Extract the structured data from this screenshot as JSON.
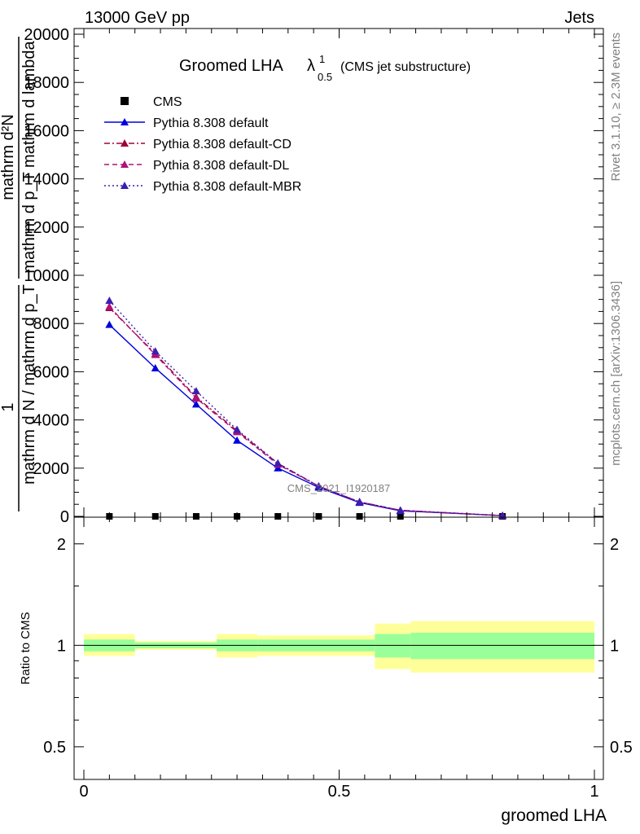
{
  "header": {
    "energy": "13000 GeV pp",
    "process": "Jets",
    "rivet": "Rivet 3.1.10, ≥ 2.3M events",
    "mcplots": "mcplots.cern.ch [arXiv:1306.3436]",
    "watermark": "CMS_2021_I1920187"
  },
  "chart_data": {
    "type": "line",
    "title": "Groomed LHA λ¹₀.₅ (CMS jet substructure)",
    "title_main": "Groomed LHA",
    "title_lambda": "λ",
    "title_sup": "1",
    "title_sub": "0.5",
    "title_paren": "(CMS jet substructure)",
    "xlabel": "groomed LHA",
    "ylabel_main_numerator": "mathrm d²N",
    "ylabel_main_denominator": "mathrm d p_T mathrm d lambda",
    "ylabel_main_prefix_num": "1",
    "ylabel_main_prefix_den": "mathrm d N / mathrm d p_T",
    "ylabel_ratio": "Ratio to CMS",
    "xlim": [
      0,
      1
    ],
    "ylim_main": [
      0,
      20000
    ],
    "ylim_ratio": [
      0.4,
      2.4
    ],
    "ratio_log_scale": true,
    "x_ticks": [
      "0",
      "0.5",
      "1"
    ],
    "y_ticks_main": [
      "0",
      "2000",
      "4000",
      "6000",
      "8000",
      "10000",
      "12000",
      "14000",
      "16000",
      "18000",
      "20000"
    ],
    "y_ticks_ratio": [
      "0.5",
      "1",
      "2"
    ],
    "legend_position": "top-left",
    "x": [
      0.05,
      0.14,
      0.22,
      0.3,
      0.38,
      0.46,
      0.54,
      0.62,
      0.82
    ],
    "series": [
      {
        "name": "CMS",
        "values": [
          0,
          0,
          0,
          0,
          0,
          0,
          0,
          0,
          0
        ],
        "color": "#000000",
        "marker": "square",
        "dash": "none"
      },
      {
        "name": "Pythia 8.308 default",
        "values": [
          7950,
          6150,
          4650,
          3150,
          2000,
          1200,
          570,
          230,
          30
        ],
        "color": "#0000dd",
        "marker": "triangle",
        "dash": "solid"
      },
      {
        "name": "Pythia 8.308 default-CD",
        "values": [
          8650,
          6750,
          4950,
          3550,
          2200,
          1250,
          600,
          250,
          30
        ],
        "color": "#a0003a",
        "marker": "triangle",
        "dash": "dashdot"
      },
      {
        "name": "Pythia 8.308 default-DL",
        "values": [
          8700,
          6700,
          4900,
          3500,
          2150,
          1250,
          600,
          250,
          30
        ],
        "color": "#b0107a",
        "marker": "triangle",
        "dash": "dashed"
      },
      {
        "name": "Pythia 8.308 default-MBR",
        "values": [
          8950,
          6850,
          5200,
          3600,
          2200,
          1250,
          600,
          250,
          30
        ],
        "color": "#3a1fb0",
        "marker": "triangle",
        "dash": "dotted"
      }
    ],
    "ratio_bands": [
      {
        "x0": 0.0,
        "x1": 0.1,
        "outer": [
          0.93,
          1.08
        ],
        "inner": [
          0.96,
          1.04
        ]
      },
      {
        "x0": 0.1,
        "x1": 0.26,
        "outer": [
          0.97,
          1.03
        ],
        "inner": [
          0.98,
          1.02
        ]
      },
      {
        "x0": 0.26,
        "x1": 0.34,
        "outer": [
          0.92,
          1.08
        ],
        "inner": [
          0.96,
          1.04
        ]
      },
      {
        "x0": 0.34,
        "x1": 0.57,
        "outer": [
          0.93,
          1.07
        ],
        "inner": [
          0.96,
          1.04
        ]
      },
      {
        "x0": 0.57,
        "x1": 0.64,
        "outer": [
          0.85,
          1.16
        ],
        "inner": [
          0.92,
          1.08
        ]
      },
      {
        "x0": 0.64,
        "x1": 1.0,
        "outer": [
          0.83,
          1.18
        ],
        "inner": [
          0.91,
          1.09
        ]
      }
    ],
    "colors": {
      "band_outer": "#ffff99",
      "band_inner": "#99ff99"
    }
  }
}
